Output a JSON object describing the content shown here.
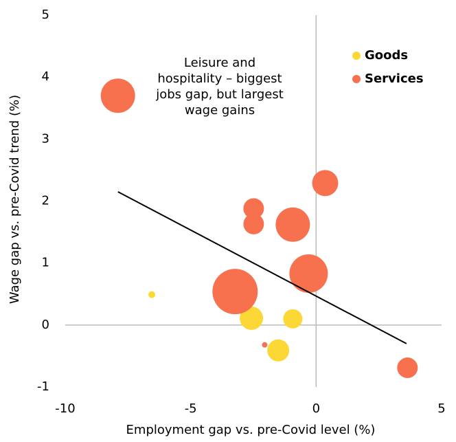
{
  "chart_data": {
    "type": "bubble",
    "xlabel": "Employment gap vs. pre-Covid level (%)",
    "ylabel": "Wage gap vs. pre-Covid trend (%)",
    "annotation": [
      "Leisure and",
      "hospitality – biggest",
      "jobs gap, but largest",
      "wage gains"
    ],
    "xlim": [
      -10,
      5
    ],
    "xticks": [
      -10,
      -5,
      0,
      5
    ],
    "ylim": [
      -1,
      5
    ],
    "yticks": [
      -1,
      0,
      1,
      2,
      3,
      4,
      5
    ],
    "legend": "upper right",
    "series": [
      {
        "name": "Goods",
        "color": "#fcd837",
        "x": [
          -6.55,
          -2.58,
          -0.93,
          -1.51
        ],
        "values": [
          0.49,
          0.11,
          0.1,
          -0.41
        ],
        "sizes": [
          2.5,
          28.9,
          19.6,
          25.6
        ]
      },
      {
        "name": "Services",
        "color": "#f7714f",
        "x": [
          -7.9,
          0.36,
          -2.49,
          -2.49,
          -0.93,
          -0.3,
          -3.23,
          -2.05,
          3.64
        ],
        "values": [
          3.7,
          2.29,
          1.88,
          1.63,
          1.62,
          0.83,
          0.54,
          -0.32,
          -0.69
        ],
        "sizes": [
          62.5,
          36.1,
          22.5,
          22.5,
          62.5,
          78.4,
          108.9,
          1.6,
          22.5
        ]
      }
    ],
    "trendline": {
      "x": [
        -7.9,
        3.6
      ],
      "values": [
        2.15,
        -0.3
      ],
      "color": "#000000"
    }
  }
}
